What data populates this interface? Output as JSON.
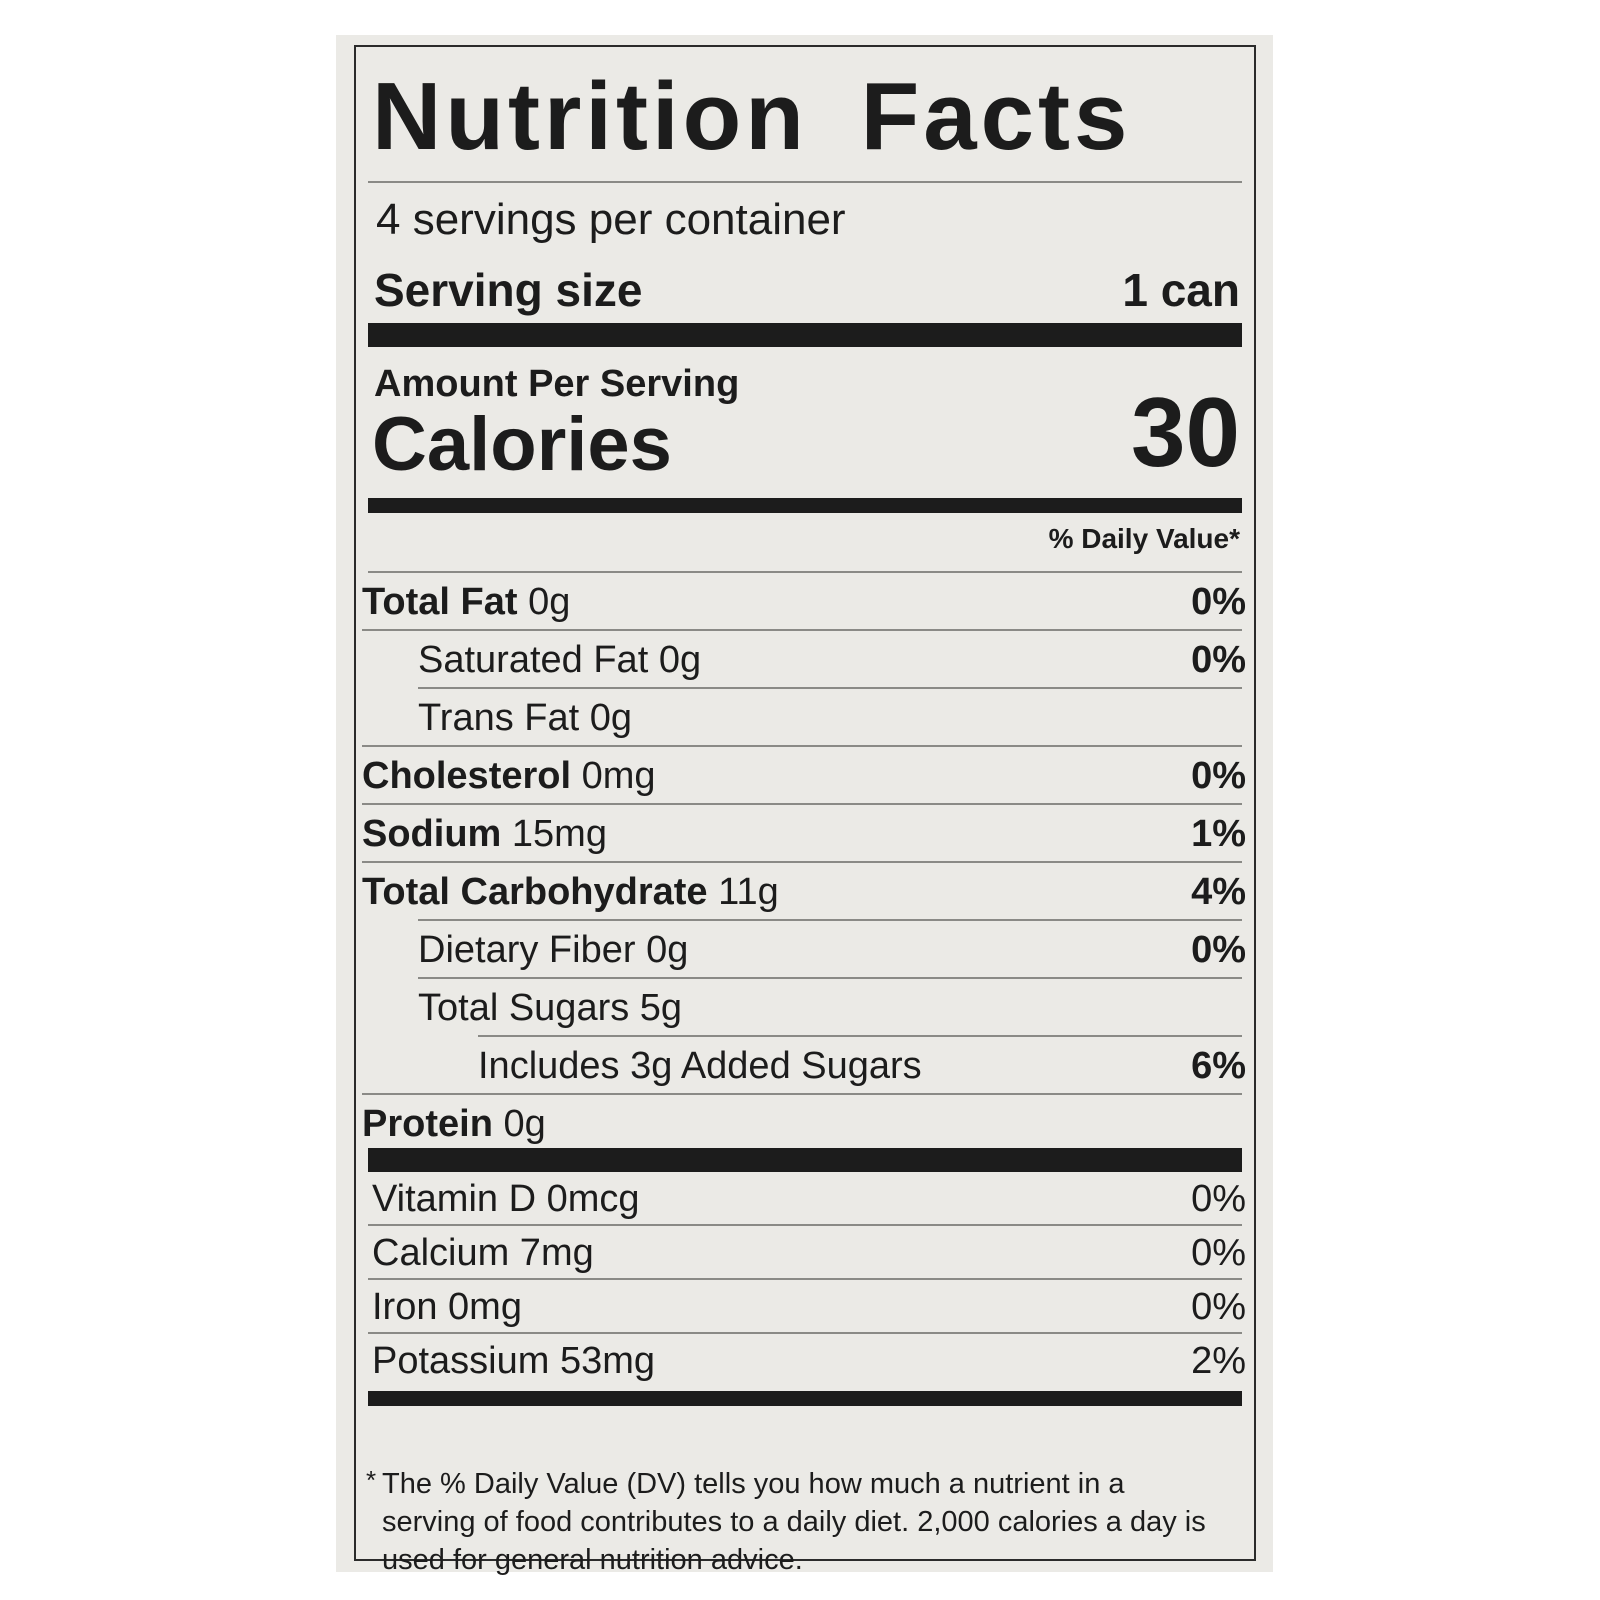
{
  "label": {
    "title": "Nutrition Facts",
    "servings_per_container": "4 servings per container",
    "serving_size_label": "Serving size",
    "serving_size_value": "1 can",
    "amount_per_serving": "Amount Per Serving",
    "calories_label": "Calories",
    "calories_value": "30",
    "dv_header": "% Daily Value*"
  },
  "nutrients": [
    {
      "name": "Total Fat",
      "amount": "0g",
      "dv": "0%"
    },
    {
      "name": "Saturated Fat",
      "amount": "0g",
      "dv": "0%"
    },
    {
      "name": "Trans Fat",
      "amount": "0g",
      "dv": ""
    },
    {
      "name": "Cholesterol",
      "amount": "0mg",
      "dv": "0%"
    },
    {
      "name": "Sodium",
      "amount": "15mg",
      "dv": "1%"
    },
    {
      "name": "Total Carbohydrate",
      "amount": "11g",
      "dv": "4%"
    },
    {
      "name": "Dietary Fiber",
      "amount": "0g",
      "dv": "0%"
    },
    {
      "name": "Total Sugars",
      "amount": "5g",
      "dv": ""
    },
    {
      "name": "Includes 3g Added Sugars",
      "amount": "",
      "dv": "6%"
    },
    {
      "name": "Protein",
      "amount": "0g",
      "dv": ""
    }
  ],
  "vitamins": [
    {
      "name": "Vitamin D 0mcg",
      "dv": "0%"
    },
    {
      "name": "Calcium 7mg",
      "dv": "0%"
    },
    {
      "name": "Iron 0mg",
      "dv": "0%"
    },
    {
      "name": "Potassium 53mg",
      "dv": "2%"
    }
  ],
  "footnote": {
    "star": "*",
    "text": "The % Daily Value (DV) tells you how much a nutrient in a serving of food contributes to a daily diet. 2,000 calories a day is used for general nutrition advice."
  }
}
